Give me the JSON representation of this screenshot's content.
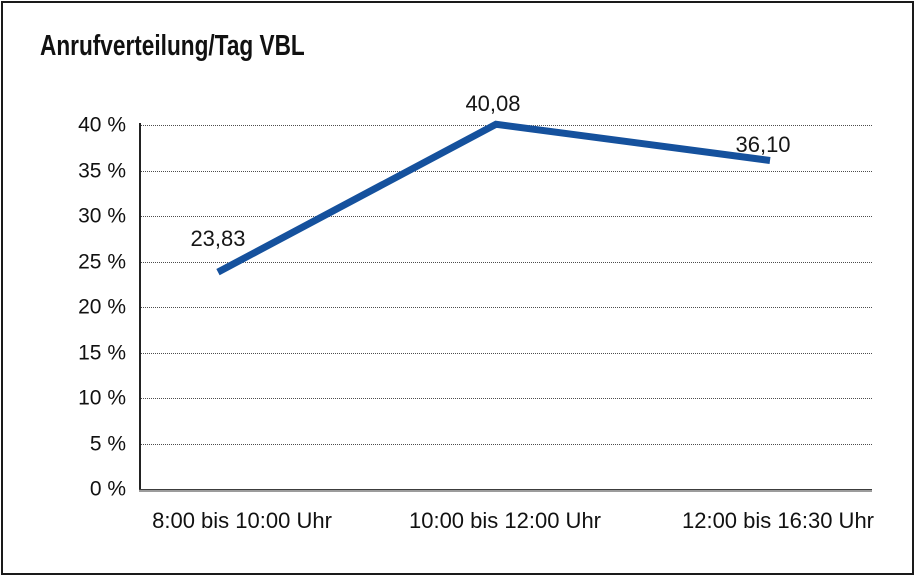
{
  "chart_data": {
    "type": "line",
    "title": "Anrufverteilung/Tag VBL",
    "categories": [
      "8:00 bis 10:00 Uhr",
      "10:00 bis 12:00 Uhr",
      "12:00 bis 16:30 Uhr"
    ],
    "series": [
      {
        "values": [
          23.83,
          40.08,
          36.1
        ],
        "point_labels": [
          "23,83",
          "40,08",
          "36,10"
        ],
        "color": "#15519D"
      }
    ],
    "xlabel": "",
    "ylabel": "",
    "ylim": [
      0,
      40
    ],
    "ytick_step": 5,
    "ytick_labels": [
      "0 %",
      "5 %",
      "10 %",
      "15 %",
      "20 %",
      "25 %",
      "30 %",
      "35 %",
      "40 %"
    ],
    "grid": "horizontal-dotted",
    "legend": "none"
  },
  "colors": {
    "background": "#ffffff",
    "border": "#1a1a1a",
    "text": "#111111",
    "grid": "#4d4d4d",
    "y_axis": "#222222",
    "x_axis_dark": "#3c3c3c",
    "x_axis_light": "#9c9c9c",
    "line": "#15519D"
  }
}
